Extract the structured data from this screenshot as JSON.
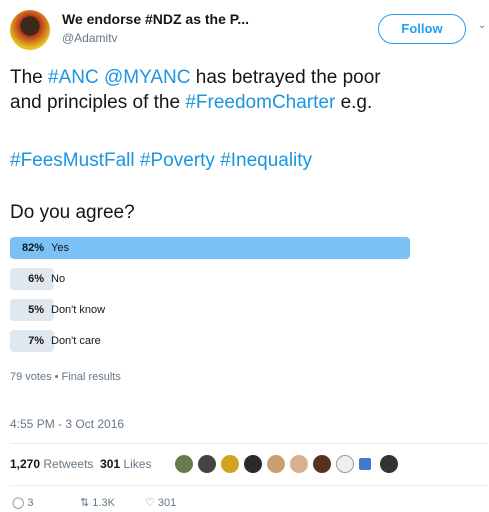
{
  "header": {
    "display_name": "We endorse #NDZ as the P...",
    "handle": "@Adamitv",
    "follow_button": "Follow"
  },
  "tweet": {
    "lines": [
      [
        {
          "text": "The ",
          "link": false
        },
        {
          "text": "#ANC",
          "link": true
        },
        {
          "text": " ",
          "link": false
        },
        {
          "text": "@MYANC",
          "link": true
        },
        {
          "text": " has betrayed the poor",
          "link": false
        }
      ],
      [
        {
          "text": "and principles of the ",
          "link": false
        },
        {
          "text": "#FreedomCharter",
          "link": true
        },
        {
          "text": " e.g.",
          "link": false
        }
      ],
      [
        {
          "text": "#FeesMustFall",
          "link": true
        },
        {
          "text": " ",
          "link": false
        },
        {
          "text": "#Poverty",
          "link": true
        },
        {
          "text": " ",
          "link": false
        },
        {
          "text": "#Inequality",
          "link": true
        }
      ],
      [
        {
          "text": "Do you agree?",
          "link": false
        }
      ]
    ]
  },
  "poll": {
    "options": [
      {
        "value": 82,
        "value_label": "82%",
        "label": "Yes",
        "leading": true
      },
      {
        "value": 6,
        "value_label": "6%",
        "label": "No",
        "leading": false
      },
      {
        "value": 5,
        "value_label": "5%",
        "label": "Don't know",
        "leading": false
      },
      {
        "value": 7,
        "value_label": "7%",
        "label": "Don't care",
        "leading": false
      }
    ],
    "summary": "79 votes • Final results"
  },
  "timestamp": "4:55 PM - 3 Oct 2016",
  "stats": {
    "retweets_count": "1,270",
    "retweets_label": "Retweets",
    "likes_count": "301",
    "likes_label": "Likes"
  },
  "actions": {
    "replies": "3",
    "retweets": "1.3K",
    "likes": "301"
  }
}
